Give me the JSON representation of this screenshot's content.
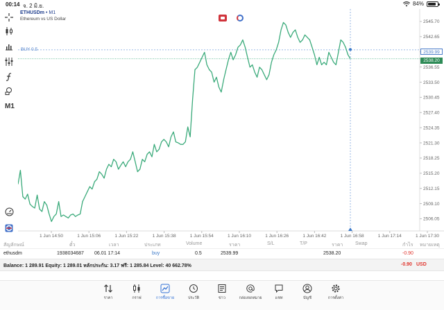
{
  "status_bar": {
    "time": "00:14",
    "date": "จ. 2 มิ.ย.",
    "battery": "84%",
    "battery_level": 0.84
  },
  "chart": {
    "symbol": "ETHUSDm",
    "timeframe_suffix": "• M1",
    "description": "Ethereum vs US Dollar",
    "buy_label": "BUY 0.5",
    "buy_price_tag": "2539.99",
    "bid_price_tag": "2538.20",
    "line_color": "#3aaa7a"
  },
  "toolbar": {
    "timeframe": "M1"
  },
  "chart_data": {
    "type": "line",
    "x_ticks": [
      "1 Jun 14:50",
      "1 Jun 15:06",
      "1 Jun 15:22",
      "1 Jun 15:38",
      "1 Jun 15:54",
      "1 Jun 16:10",
      "1 Jun 16:26",
      "1 Jun 16:42",
      "1 Jun 16:58",
      "1 Jun 17:14",
      "1 Jun 17:30"
    ],
    "y_ticks": [
      2545.7,
      2542.65,
      2539.6,
      2536.55,
      2533.5,
      2530.45,
      2527.4,
      2524.35,
      2521.3,
      2518.25,
      2515.2,
      2512.15,
      2509.1,
      2506.05
    ],
    "ylim": [
      2503.6,
      2548.2
    ],
    "buy_level": 2539.99,
    "bid_level": 2538.2,
    "series": [
      {
        "values": [
          2513.0,
          2515.8,
          2510.5,
          2510.0,
          2511.0,
          2509.0,
          2508.5,
          2508.2,
          2510.8,
          2508.0,
          2507.5,
          2509.5,
          2508.8,
          2507.0,
          2505.5,
          2506.5,
          2507.0,
          2509.5,
          2506.5,
          2506.8,
          2506.5,
          2506.2,
          2506.8,
          2507.0,
          2506.5,
          2506.8,
          2507.0,
          2509.5,
          2510.5,
          2511.5,
          2512.5,
          2512.0,
          2513.5,
          2514.0,
          2515.5,
          2515.0,
          2514.2,
          2516.0,
          2517.0,
          2516.5,
          2518.0,
          2517.5,
          2516.0,
          2516.8,
          2517.5,
          2516.5,
          2517.5,
          2518.0,
          2519.5,
          2517.5,
          2515.5,
          2516.0,
          2518.0,
          2517.5,
          2519.0,
          2519.5,
          2518.5,
          2521.0,
          2519.5,
          2520.0,
          2521.5,
          2522.0,
          2521.5,
          2520.5,
          2522.5,
          2523.5,
          2521.5,
          2521.3,
          2521.0,
          2521.0,
          2521.5,
          2524.5,
          2522.5,
          2530.0,
          2536.0,
          2536.5,
          2537.5,
          2538.5,
          2539.5,
          2537.0,
          2536.0,
          2535.5,
          2533.5,
          2534.5,
          2532.5,
          2531.5,
          2534.0,
          2536.0,
          2538.0,
          2539.5,
          2538.0,
          2539.0,
          2540.5,
          2541.0,
          2542.0,
          2540.5,
          2538.5,
          2536.5,
          2537.0,
          2535.5,
          2534.5,
          2536.5,
          2536.0,
          2535.0,
          2534.0,
          2535.0,
          2537.5,
          2539.0,
          2540.0,
          2541.5,
          2544.0,
          2545.5,
          2545.0,
          2543.5,
          2542.5,
          2543.5,
          2544.0,
          2542.5,
          2541.5,
          2542.0,
          2543.0,
          2542.5,
          2542.0,
          2540.5,
          2539.0,
          2537.0,
          2538.5,
          2537.0,
          2537.5,
          2537.0,
          2539.5,
          2538.5,
          2537.5,
          2537.0,
          2539.5,
          2542.0,
          2541.5,
          2540.5,
          2539.0,
          2538.2
        ]
      }
    ]
  },
  "table": {
    "headers": [
      "สัญลักษณ์",
      "ตั๋ว",
      "เวลา",
      "ประเภท",
      "Volume",
      "ราคา",
      "S/L",
      "T/P",
      "ราคา",
      "Swap",
      "กำไร",
      "หมายเหตุ"
    ],
    "rows": [
      {
        "symbol": "ethusdm",
        "ticket": "1938034687",
        "time": "06.01 17:14",
        "type": "buy",
        "volume": "0.5",
        "price_open": "2539.99",
        "sl": "",
        "tp": "",
        "price_current": "2538.20",
        "swap": "",
        "profit": "-0.90",
        "comment": ""
      }
    ],
    "balance_text": "Balance: 1 289.91 Equity: 1 289.01 หลักประกัน: 3.17 ฟรี: 1 285.84 Level: 40 662.78%",
    "total_profit": "-0.90",
    "currency": "USD"
  },
  "tabbar": {
    "items": [
      {
        "label": "ราคา",
        "icon": "arrows-updown-icon"
      },
      {
        "label": "กราฟ",
        "icon": "candlestick-icon"
      },
      {
        "label": "การซื้อขาย",
        "icon": "trade-chart-icon",
        "active": true
      },
      {
        "label": "ประวัติ",
        "icon": "history-clock-icon"
      },
      {
        "label": "ข่าว",
        "icon": "news-icon"
      },
      {
        "label": "กล่องจดหมาย",
        "icon": "at-mail-icon"
      },
      {
        "label": "แชท",
        "icon": "chat-icon"
      },
      {
        "label": "บัญชี",
        "icon": "account-icon"
      },
      {
        "label": "การตั้งค่า",
        "icon": "gear-icon"
      }
    ]
  }
}
